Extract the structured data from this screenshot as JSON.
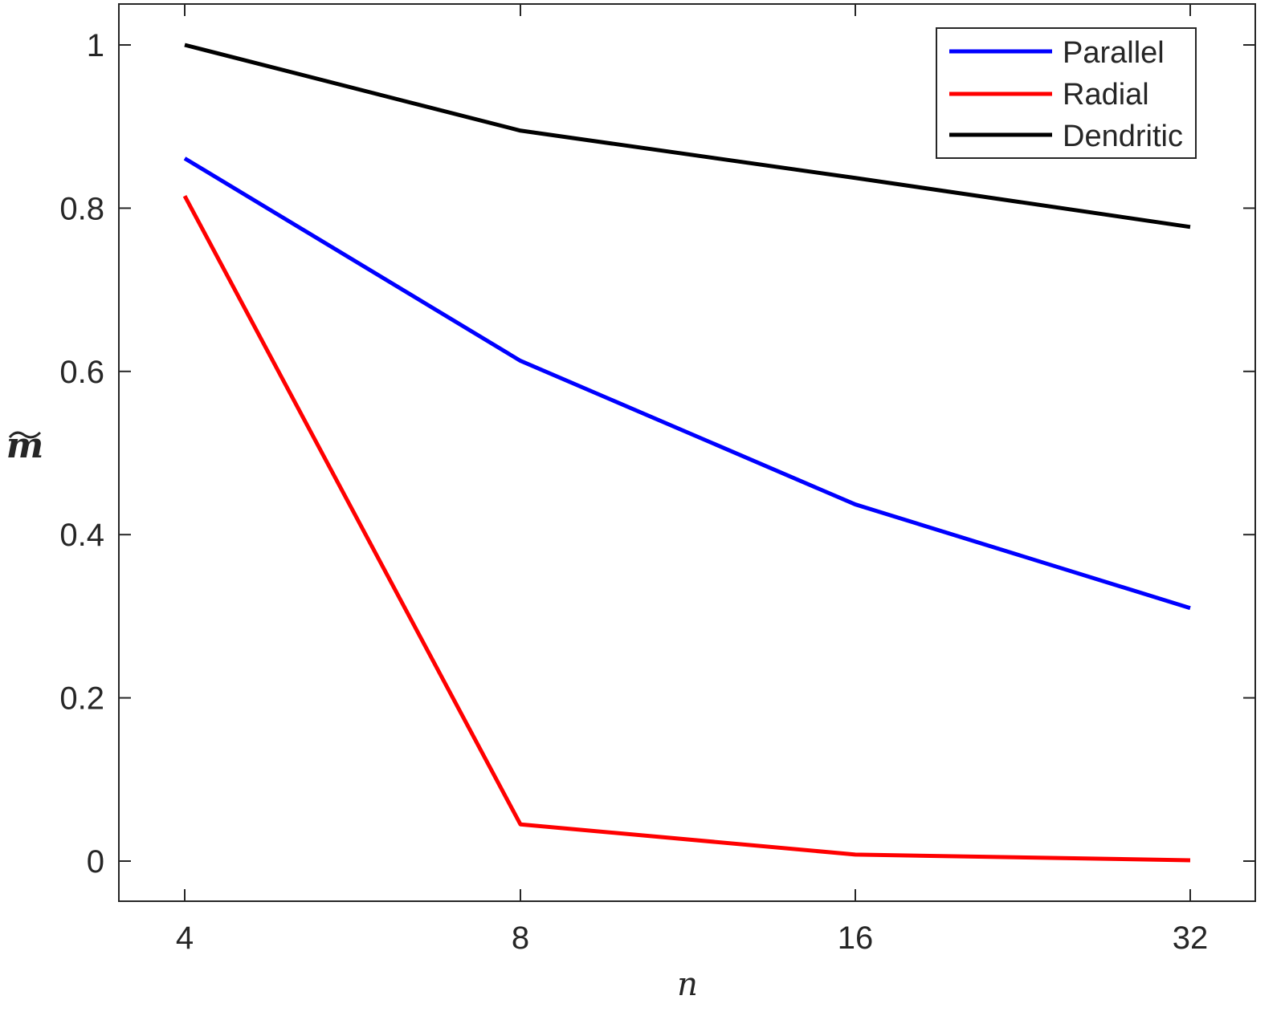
{
  "chart_data": {
    "type": "line",
    "title": "",
    "xlabel": "n",
    "ylabel": "m̃",
    "x_scale": "log2",
    "categories": [
      "4",
      "8",
      "16",
      "32"
    ],
    "x": [
      4,
      8,
      16,
      32
    ],
    "xlim": [
      3.3,
      38
    ],
    "ylim": [
      -0.05,
      1.07
    ],
    "yticks": [
      0,
      0.2,
      0.4,
      0.6,
      0.8,
      1
    ],
    "ytick_labels": [
      "0",
      "0.2",
      "0.4",
      "0.6",
      "0.8",
      "1"
    ],
    "xtick_labels": [
      "4",
      "8",
      "16",
      "32"
    ],
    "grid": false,
    "legend_position": "upper right",
    "series": [
      {
        "name": "Parallel",
        "color": "#0000ff",
        "values": [
          0.861,
          0.613,
          0.437,
          0.31
        ]
      },
      {
        "name": "Radial",
        "color": "#ff0000",
        "values": [
          0.815,
          0.045,
          0.008,
          0.001
        ]
      },
      {
        "name": "Dendritic",
        "color": "#000000",
        "values": [
          1.0,
          0.895,
          0.837,
          0.777
        ]
      }
    ]
  },
  "legend": {
    "items": [
      {
        "label": "Parallel",
        "color": "#0000ff"
      },
      {
        "label": "Radial",
        "color": "#ff0000"
      },
      {
        "label": "Dendritic",
        "color": "#000000"
      }
    ]
  },
  "axes": {
    "xlabel": "n",
    "ylabel": "m",
    "ylabel_accent": "~"
  }
}
